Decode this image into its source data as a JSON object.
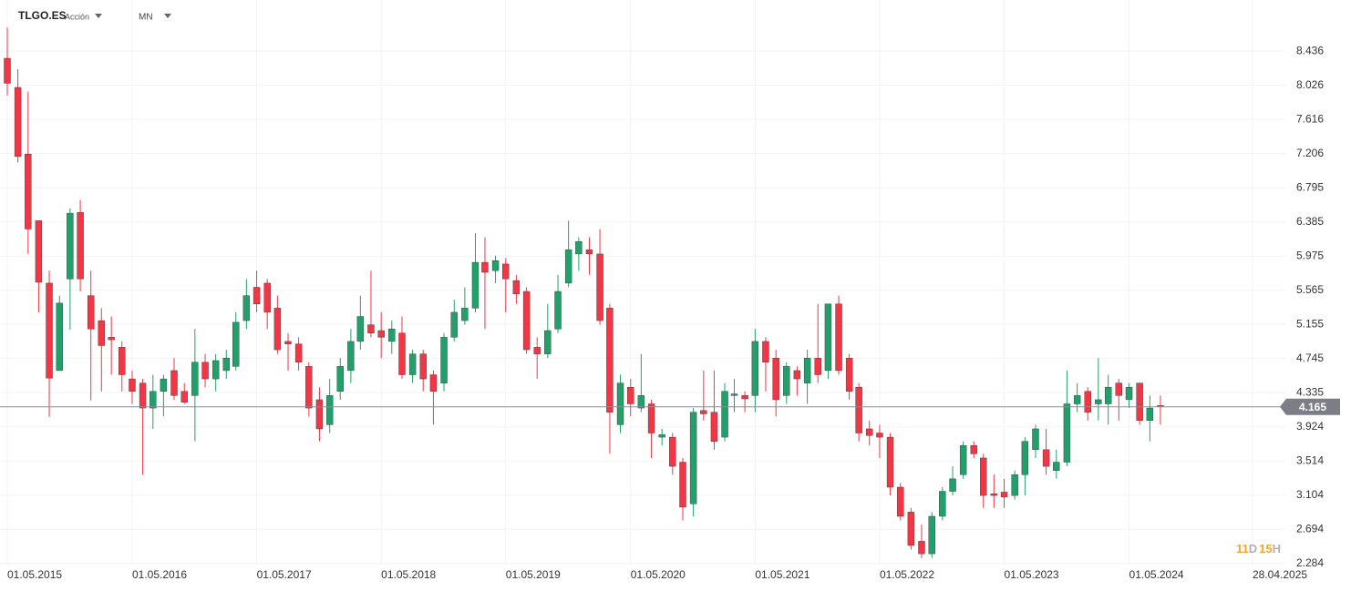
{
  "header": {
    "ticker": "TLGO.ES",
    "kind": "Acción",
    "timeframe": "MN"
  },
  "countdown": [
    "11",
    "D",
    "15",
    "H"
  ],
  "chart_data": {
    "type": "candlestick",
    "x": [
      "01.05.2015",
      "01.06.2015",
      "01.07.2015",
      "01.08.2015",
      "01.09.2015",
      "01.10.2015",
      "01.11.2015",
      "01.12.2015",
      "01.01.2016",
      "01.02.2016",
      "01.03.2016",
      "01.04.2016",
      "01.05.2016",
      "01.06.2016",
      "01.07.2016",
      "01.08.2016",
      "01.09.2016",
      "01.10.2016",
      "01.11.2016",
      "01.12.2016",
      "01.01.2017",
      "01.02.2017",
      "01.03.2017",
      "01.04.2017",
      "01.05.2017",
      "01.06.2017",
      "01.07.2017",
      "01.08.2017",
      "01.09.2017",
      "01.10.2017",
      "01.11.2017",
      "01.12.2017",
      "01.01.2018",
      "01.02.2018",
      "01.03.2018",
      "01.04.2018",
      "01.05.2018",
      "01.06.2018",
      "01.07.2018",
      "01.08.2018",
      "01.09.2018",
      "01.10.2018",
      "01.11.2018",
      "01.12.2018",
      "01.01.2019",
      "01.02.2019",
      "01.03.2019",
      "01.04.2019",
      "01.05.2019",
      "01.06.2019",
      "01.07.2019",
      "01.08.2019",
      "01.09.2019",
      "01.10.2019",
      "01.11.2019",
      "01.12.2019",
      "01.01.2020",
      "01.02.2020",
      "01.03.2020",
      "01.04.2020",
      "01.05.2020",
      "01.06.2020",
      "01.07.2020",
      "01.08.2020",
      "01.09.2020",
      "01.10.2020",
      "01.11.2020",
      "01.12.2020",
      "01.01.2021",
      "01.02.2021",
      "01.03.2021",
      "01.04.2021",
      "01.05.2021",
      "01.06.2021",
      "01.07.2021",
      "01.08.2021",
      "01.09.2021",
      "01.10.2021",
      "01.11.2021",
      "01.12.2021",
      "01.01.2022",
      "01.02.2022",
      "01.03.2022",
      "01.04.2022",
      "01.05.2022",
      "01.06.2022",
      "01.07.2022",
      "01.08.2022",
      "01.09.2022",
      "01.10.2022",
      "01.11.2022",
      "01.12.2022",
      "01.01.2023",
      "01.02.2023",
      "01.03.2023",
      "01.04.2023",
      "01.05.2023",
      "01.06.2023",
      "01.07.2023",
      "01.08.2023",
      "01.09.2023",
      "01.10.2023",
      "01.11.2023",
      "01.12.2023",
      "01.01.2024",
      "01.02.2024",
      "01.03.2024",
      "01.04.2024",
      "01.05.2024",
      "01.06.2024",
      "01.07.2024",
      "01.08.2024"
    ],
    "open": [
      8.35,
      8.0,
      7.2,
      6.4,
      5.65,
      4.6,
      5.7,
      6.5,
      5.5,
      5.2,
      5.0,
      4.88,
      4.5,
      4.45,
      4.15,
      4.35,
      4.6,
      4.35,
      4.3,
      4.7,
      4.5,
      4.6,
      4.65,
      5.2,
      5.6,
      5.65,
      5.35,
      4.95,
      4.92,
      4.65,
      4.25,
      3.95,
      4.35,
      4.6,
      4.95,
      5.15,
      5.08,
      4.95,
      5.05,
      4.55,
      4.8,
      4.55,
      4.45,
      5.0,
      5.2,
      5.35,
      5.9,
      5.8,
      5.88,
      5.68,
      5.55,
      4.88,
      4.8,
      5.1,
      5.65,
      6.0,
      6.05,
      6.0,
      5.35,
      3.95,
      4.4,
      4.15,
      4.2,
      3.8,
      3.8,
      3.5,
      3.0,
      4.12,
      4.1,
      3.8,
      4.3,
      4.3,
      4.3,
      4.95,
      4.75,
      4.3,
      4.6,
      4.45,
      4.75,
      4.6,
      5.4,
      4.75,
      4.4,
      3.9,
      3.85,
      3.8,
      3.2,
      2.9,
      2.55,
      2.4,
      2.85,
      3.15,
      3.35,
      3.7,
      3.55,
      3.12,
      3.14,
      3.1,
      3.35,
      3.65,
      3.65,
      3.4,
      3.5,
      4.2,
      4.35,
      4.2,
      4.2,
      4.45,
      4.25,
      4.45,
      4.0,
      4.18
    ],
    "high": [
      8.72,
      8.22,
      7.95,
      6.4,
      5.8,
      5.5,
      6.55,
      6.65,
      5.8,
      5.35,
      5.25,
      4.95,
      4.6,
      4.5,
      4.55,
      4.55,
      4.75,
      4.45,
      5.1,
      4.8,
      4.8,
      4.85,
      5.3,
      5.7,
      5.8,
      5.7,
      5.5,
      5.05,
      5.0,
      4.7,
      4.4,
      4.5,
      4.75,
      5.1,
      5.5,
      5.8,
      5.3,
      5.2,
      5.25,
      4.85,
      4.85,
      4.6,
      5.05,
      5.45,
      5.6,
      6.25,
      6.2,
      5.98,
      5.95,
      5.75,
      5.6,
      5.0,
      5.4,
      5.75,
      6.4,
      6.2,
      6.2,
      6.3,
      5.4,
      4.55,
      4.5,
      4.8,
      4.25,
      3.9,
      3.85,
      3.55,
      4.15,
      4.6,
      4.6,
      4.45,
      4.5,
      4.35,
      5.1,
      5.0,
      4.85,
      4.7,
      4.65,
      4.85,
      5.4,
      5.4,
      5.5,
      4.8,
      4.45,
      4.0,
      3.95,
      3.85,
      3.25,
      2.95,
      2.75,
      2.9,
      3.2,
      3.45,
      3.75,
      3.75,
      3.6,
      3.35,
      3.3,
      3.4,
      3.8,
      3.95,
      3.9,
      3.65,
      4.6,
      4.45,
      4.4,
      4.75,
      4.55,
      4.5,
      4.45,
      4.45,
      4.3,
      4.3
    ],
    "low": [
      7.9,
      7.1,
      6.0,
      5.3,
      4.04,
      4.6,
      5.09,
      5.55,
      4.24,
      4.35,
      4.55,
      4.35,
      4.2,
      3.35,
      3.9,
      4.05,
      4.25,
      4.2,
      3.75,
      4.4,
      4.35,
      4.5,
      4.6,
      5.1,
      5.3,
      5.1,
      4.8,
      4.6,
      4.6,
      4.05,
      3.75,
      3.85,
      4.25,
      4.45,
      4.85,
      5.0,
      4.75,
      4.8,
      4.5,
      4.45,
      4.35,
      3.95,
      4.35,
      4.95,
      5.15,
      5.3,
      5.1,
      5.65,
      5.3,
      5.4,
      4.8,
      4.5,
      4.75,
      5.05,
      5.6,
      5.8,
      5.75,
      5.15,
      3.6,
      3.85,
      4.05,
      4.1,
      3.55,
      3.7,
      3.35,
      2.8,
      2.85,
      4.0,
      3.65,
      3.75,
      4.1,
      4.1,
      4.1,
      4.35,
      4.05,
      4.2,
      4.3,
      4.2,
      4.45,
      4.5,
      4.55,
      4.25,
      3.75,
      3.7,
      3.55,
      3.1,
      2.8,
      2.45,
      2.35,
      2.35,
      2.8,
      3.1,
      3.3,
      3.55,
      2.95,
      2.95,
      2.95,
      3.05,
      3.1,
      3.55,
      3.35,
      3.3,
      3.45,
      4.1,
      4.0,
      4.0,
      3.95,
      4.0,
      4.15,
      3.95,
      3.75,
      3.95
    ],
    "close": [
      8.05,
      7.17,
      6.3,
      5.66,
      4.51,
      5.41,
      6.49,
      5.7,
      5.1,
      4.9,
      4.97,
      4.55,
      4.35,
      4.15,
      4.35,
      4.5,
      4.3,
      4.22,
      4.7,
      4.5,
      4.72,
      4.75,
      5.18,
      5.5,
      5.4,
      5.3,
      4.85,
      4.92,
      4.7,
      4.15,
      3.9,
      4.3,
      4.65,
      4.95,
      5.25,
      5.05,
      5.0,
      5.1,
      4.55,
      4.8,
      4.5,
      4.35,
      5.0,
      5.3,
      5.35,
      5.9,
      5.78,
      5.92,
      5.7,
      5.52,
      4.85,
      4.8,
      5.08,
      5.55,
      6.05,
      6.15,
      6.0,
      5.2,
      4.1,
      4.45,
      4.2,
      4.3,
      3.85,
      3.83,
      3.45,
      2.96,
      4.1,
      4.08,
      3.75,
      4.35,
      4.32,
      4.26,
      4.95,
      4.7,
      4.25,
      4.65,
      4.5,
      4.75,
      4.55,
      5.4,
      4.6,
      4.35,
      3.85,
      3.82,
      3.8,
      3.2,
      2.85,
      2.5,
      2.4,
      2.85,
      3.15,
      3.3,
      3.7,
      3.6,
      3.1,
      3.1,
      3.08,
      3.35,
      3.75,
      3.9,
      3.45,
      3.5,
      4.2,
      4.3,
      4.1,
      4.25,
      4.4,
      4.3,
      4.4,
      4.0,
      4.15,
      4.165
    ],
    "up_color": "#22a06b",
    "down_color": "#f23645",
    "current_price": 4.165,
    "xlim": [
      "01.05.2015",
      "28.04.2025"
    ],
    "xticks": [
      "01.05.2015",
      "01.05.2016",
      "01.05.2017",
      "01.05.2018",
      "01.05.2019",
      "01.05.2020",
      "01.05.2021",
      "01.05.2022",
      "01.05.2023",
      "01.05.2024",
      "28.04.2025"
    ],
    "ylim": [
      2.27,
      9.05
    ],
    "yticks": [
      2.284,
      2.694,
      3.104,
      3.514,
      3.924,
      4.335,
      4.745,
      5.155,
      5.565,
      5.975,
      6.385,
      6.795,
      7.206,
      7.616,
      8.026,
      8.436
    ],
    "grid": true
  }
}
